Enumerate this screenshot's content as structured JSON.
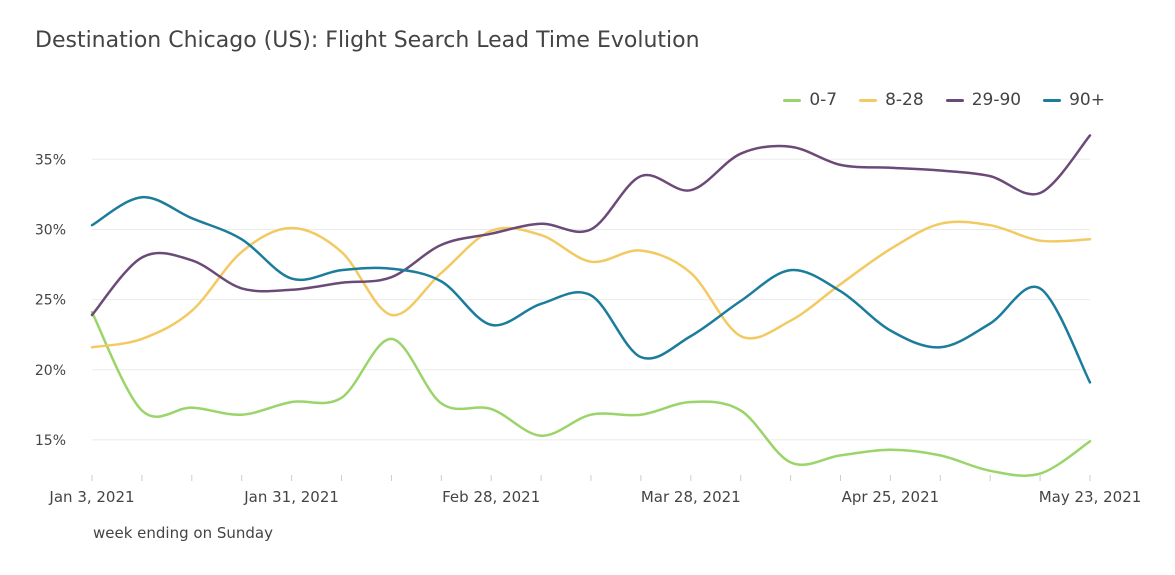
{
  "chart_data": {
    "type": "line",
    "title": "Destination Chicago (US): Flight Search Lead Time Evolution",
    "xlabel": "week ending on Sunday",
    "ylabel": "",
    "x": [
      "2021-01-03",
      "2021-01-10",
      "2021-01-17",
      "2021-01-24",
      "2021-01-31",
      "2021-02-07",
      "2021-02-14",
      "2021-02-21",
      "2021-02-28",
      "2021-03-07",
      "2021-03-14",
      "2021-03-21",
      "2021-03-28",
      "2021-04-04",
      "2021-04-11",
      "2021-04-18",
      "2021-04-25",
      "2021-05-02",
      "2021-05-09",
      "2021-05-16",
      "2021-05-23"
    ],
    "x_tick_labels": [
      "Jan 3, 2021",
      "Jan 31, 2021",
      "Feb 28, 2021",
      "Mar 28, 2021",
      "Apr 25, 2021",
      "May 23, 2021"
    ],
    "x_tick_positions": [
      "2021-01-03",
      "2021-01-31",
      "2021-02-28",
      "2021-03-28",
      "2021-04-25",
      "2021-05-23"
    ],
    "y_ticks": [
      15,
      20,
      25,
      30,
      35
    ],
    "y_tick_labels": [
      "15%",
      "20%",
      "25%",
      "30%",
      "35%"
    ],
    "ylim": [
      12.5,
      37.8
    ],
    "grid": true,
    "legend_position": "top-right",
    "series": [
      {
        "name": "0-7",
        "color": "#9bd46a",
        "values": [
          24.1,
          17.1,
          17.3,
          16.8,
          17.7,
          18.0,
          22.2,
          17.6,
          17.2,
          15.3,
          16.8,
          16.8,
          17.7,
          17.1,
          13.4,
          13.9,
          14.3,
          13.9,
          12.8,
          12.6,
          14.9
        ]
      },
      {
        "name": "8-28",
        "color": "#f3ca62",
        "values": [
          21.6,
          22.2,
          24.2,
          28.4,
          30.1,
          28.4,
          23.9,
          26.9,
          29.9,
          29.6,
          27.7,
          28.5,
          26.9,
          22.4,
          23.5,
          26.1,
          28.6,
          30.4,
          30.3,
          29.2,
          29.3
        ]
      },
      {
        "name": "29-90",
        "color": "#6c4a78",
        "values": [
          23.9,
          28.0,
          27.8,
          25.8,
          25.7,
          26.2,
          26.6,
          28.9,
          29.7,
          30.4,
          30.0,
          33.8,
          32.8,
          35.4,
          35.9,
          34.6,
          34.4,
          34.2,
          33.8,
          32.6,
          36.7
        ]
      },
      {
        "name": "90+",
        "color": "#1b7c9c",
        "values": [
          30.3,
          32.3,
          30.8,
          29.3,
          26.5,
          27.1,
          27.2,
          26.3,
          23.2,
          24.7,
          25.3,
          20.9,
          22.4,
          24.9,
          27.1,
          25.6,
          22.8,
          21.6,
          23.3,
          25.8,
          19.1
        ]
      }
    ]
  }
}
